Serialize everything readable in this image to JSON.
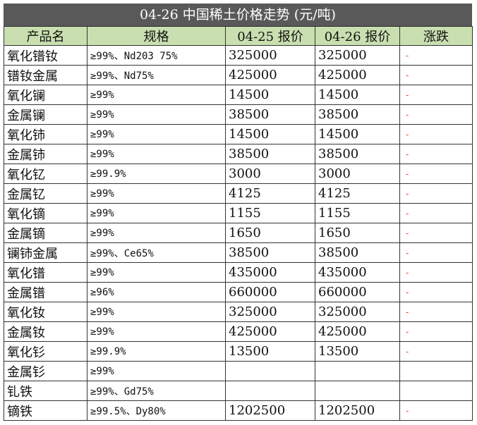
{
  "title": "04-26 中国稀土价格走势 (元/吨)",
  "headers": [
    "产品名",
    "规格",
    "04-25 报价",
    "04-26 报价",
    "涨跌"
  ],
  "rows": [
    {
      "name": "氧化镨钕",
      "spec": "≥99%、Nd203 75%",
      "prev": "325000",
      "curr": "325000",
      "change": "-"
    },
    {
      "name": "镨钕金属",
      "spec": "≥99%、Nd75%",
      "prev": "425000",
      "curr": "425000",
      "change": "-"
    },
    {
      "name": "氧化镧",
      "spec": "≥99%",
      "prev": "14500",
      "curr": "14500",
      "change": "-"
    },
    {
      "name": "金属镧",
      "spec": "≥99%",
      "prev": "38500",
      "curr": "38500",
      "change": "-"
    },
    {
      "name": "氧化铈",
      "spec": "≥99%",
      "prev": "14500",
      "curr": "14500",
      "change": "-"
    },
    {
      "name": "金属铈",
      "spec": "≥99%",
      "prev": "38500",
      "curr": "38500",
      "change": "-"
    },
    {
      "name": "氧化钇",
      "spec": "≥99.9%",
      "prev": "3000",
      "curr": "3000",
      "change": "-"
    },
    {
      "name": "金属钇",
      "spec": "≥99%",
      "prev": "4125",
      "curr": "4125",
      "change": "-"
    },
    {
      "name": "氧化镝",
      "spec": "≥99%",
      "prev": "1155",
      "curr": "1155",
      "change": "-"
    },
    {
      "name": "金属镝",
      "spec": "≥99%",
      "prev": "1650",
      "curr": "1650",
      "change": "-"
    },
    {
      "name": "镧铈金属",
      "spec": "≥99%、Ce65%",
      "prev": "38500",
      "curr": "38500",
      "change": "-"
    },
    {
      "name": "氧化镨",
      "spec": "≥99%",
      "prev": "435000",
      "curr": "435000",
      "change": "-"
    },
    {
      "name": "金属镨",
      "spec": "≥96%",
      "prev": "660000",
      "curr": "660000",
      "change": "-"
    },
    {
      "name": "氧化钕",
      "spec": "≥99%",
      "prev": "325000",
      "curr": "325000",
      "change": "-"
    },
    {
      "name": "金属钕",
      "spec": "≥99%",
      "prev": "425000",
      "curr": "425000",
      "change": "-"
    },
    {
      "name": "氧化钐",
      "spec": "≥99.9%",
      "prev": "13500",
      "curr": "13500",
      "change": "-"
    },
    {
      "name": "金属钐",
      "spec": "≥99%",
      "prev": "",
      "curr": "",
      "change": ""
    },
    {
      "name": "钆铁",
      "spec": "≥99%、Gd75%",
      "prev": "",
      "curr": "",
      "change": ""
    },
    {
      "name": "镝铁",
      "spec": "≥99.5%、Dy80%",
      "prev": "1202500",
      "curr": "1202500",
      "change": "-"
    }
  ],
  "colors": {
    "title_bg": "#595959",
    "header_bg": "#c9dfb0",
    "change_color": "#e05020"
  }
}
